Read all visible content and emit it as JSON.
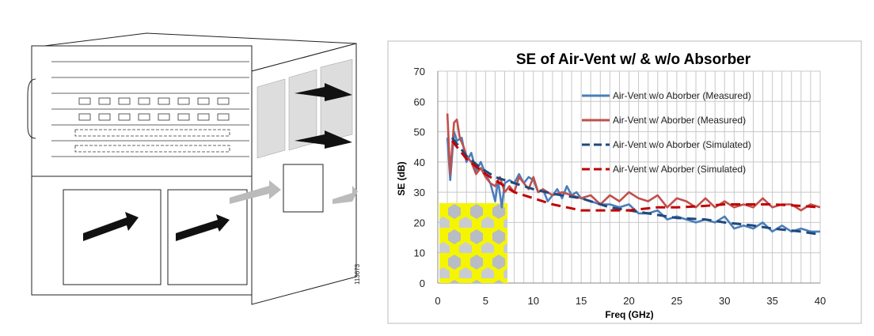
{
  "illustration": {
    "figure_number": "113673"
  },
  "chart_data": {
    "type": "line",
    "title": "SE of Air-Vent w/ & w/o Absorber",
    "xlabel": "Freq (GHz)",
    "ylabel": "SE (dB)",
    "xlim": [
      0,
      40
    ],
    "ylim": [
      0,
      70
    ],
    "xticks": [
      "0",
      "5",
      "10",
      "15",
      "20",
      "25",
      "30",
      "35",
      "40"
    ],
    "yticks": [
      "0",
      "10",
      "20",
      "30",
      "40",
      "50",
      "60",
      "70"
    ],
    "grid": true,
    "legend_position": "top-right",
    "series": [
      {
        "name": "Air-Vent w/o Aborber (Measured)",
        "color": "#4a7ebb",
        "dash": false,
        "points": [
          [
            1,
            48
          ],
          [
            1.3,
            34
          ],
          [
            1.7,
            50
          ],
          [
            2,
            47
          ],
          [
            2.5,
            48
          ],
          [
            3,
            40
          ],
          [
            3.5,
            43
          ],
          [
            4,
            37
          ],
          [
            4.5,
            40
          ],
          [
            5,
            36
          ],
          [
            5.5,
            33
          ],
          [
            6,
            27
          ],
          [
            6.3,
            34
          ],
          [
            6.7,
            25
          ],
          [
            7,
            33
          ],
          [
            7.5,
            34
          ],
          [
            8,
            33
          ],
          [
            8.5,
            36
          ],
          [
            9,
            33
          ],
          [
            9.5,
            35
          ],
          [
            10,
            34
          ],
          [
            10.5,
            30
          ],
          [
            11,
            31
          ],
          [
            11.5,
            27
          ],
          [
            12,
            29
          ],
          [
            12.5,
            31
          ],
          [
            13,
            28
          ],
          [
            13.5,
            32
          ],
          [
            14,
            29
          ],
          [
            14.5,
            30
          ],
          [
            15,
            28
          ],
          [
            16,
            27
          ],
          [
            17,
            26
          ],
          [
            18,
            26
          ],
          [
            19,
            25
          ],
          [
            20,
            26
          ],
          [
            21,
            23
          ],
          [
            22,
            23
          ],
          [
            23,
            24
          ],
          [
            24,
            21
          ],
          [
            25,
            22
          ],
          [
            26,
            21
          ],
          [
            27,
            20
          ],
          [
            28,
            21
          ],
          [
            29,
            20
          ],
          [
            30,
            22
          ],
          [
            31,
            18
          ],
          [
            32,
            19
          ],
          [
            33,
            18
          ],
          [
            34,
            20
          ],
          [
            35,
            17
          ],
          [
            36,
            19
          ],
          [
            37,
            17
          ],
          [
            38,
            18
          ],
          [
            39,
            17
          ],
          [
            40,
            17
          ]
        ]
      },
      {
        "name": "Air-Vent w/ Aborber (Measured)",
        "color": "#c0504d",
        "dash": false,
        "points": [
          [
            1,
            56
          ],
          [
            1.3,
            36
          ],
          [
            1.7,
            53
          ],
          [
            2,
            54
          ],
          [
            2.3,
            48
          ],
          [
            2.7,
            45
          ],
          [
            3,
            42
          ],
          [
            3.5,
            40
          ],
          [
            4,
            36
          ],
          [
            4.5,
            38
          ],
          [
            5,
            35
          ],
          [
            5.5,
            33
          ],
          [
            6,
            32
          ],
          [
            6.5,
            35
          ],
          [
            7,
            30
          ],
          [
            7.5,
            32
          ],
          [
            8,
            30
          ],
          [
            8.5,
            35
          ],
          [
            9,
            33
          ],
          [
            9.5,
            31
          ],
          [
            10,
            35
          ],
          [
            10.5,
            30
          ],
          [
            11,
            31
          ],
          [
            12,
            29
          ],
          [
            13,
            30
          ],
          [
            14,
            29
          ],
          [
            15,
            28
          ],
          [
            16,
            29
          ],
          [
            17,
            26
          ],
          [
            18,
            29
          ],
          [
            19,
            27
          ],
          [
            20,
            30
          ],
          [
            21,
            28
          ],
          [
            22,
            27
          ],
          [
            23,
            29
          ],
          [
            24,
            25
          ],
          [
            25,
            28
          ],
          [
            26,
            27
          ],
          [
            27,
            25
          ],
          [
            28,
            28
          ],
          [
            29,
            25
          ],
          [
            30,
            27
          ],
          [
            31,
            25
          ],
          [
            32,
            26
          ],
          [
            33,
            25
          ],
          [
            34,
            28
          ],
          [
            35,
            25
          ],
          [
            36,
            26
          ],
          [
            37,
            26
          ],
          [
            38,
            24
          ],
          [
            39,
            26
          ],
          [
            40,
            25
          ]
        ]
      },
      {
        "name": "Air-Vent w/o Aborber (Simulated)",
        "color": "#1f497d",
        "dash": true,
        "points": [
          [
            1.5,
            48
          ],
          [
            3,
            42
          ],
          [
            4.5,
            38
          ],
          [
            6,
            35
          ],
          [
            8,
            33
          ],
          [
            10,
            31
          ],
          [
            12,
            29.5
          ],
          [
            15,
            28
          ],
          [
            18,
            25
          ],
          [
            20,
            24
          ],
          [
            22,
            23
          ],
          [
            25,
            21.5
          ],
          [
            28,
            21
          ],
          [
            30,
            20
          ],
          [
            33,
            19
          ],
          [
            35,
            18
          ],
          [
            38,
            17
          ],
          [
            40,
            16
          ]
        ]
      },
      {
        "name": "Air-Vent w/ Aborber (Simulated)",
        "color": "#c00000",
        "dash": true,
        "points": [
          [
            1.5,
            47
          ],
          [
            3,
            41
          ],
          [
            5,
            36
          ],
          [
            6.5,
            33
          ],
          [
            8,
            30
          ],
          [
            10,
            28
          ],
          [
            12,
            26
          ],
          [
            15,
            24
          ],
          [
            18,
            24
          ],
          [
            20,
            24
          ],
          [
            23,
            25
          ],
          [
            25,
            25
          ],
          [
            28,
            25.5
          ],
          [
            30,
            26
          ],
          [
            33,
            26
          ],
          [
            35,
            26
          ],
          [
            38,
            25.5
          ],
          [
            40,
            25
          ]
        ]
      }
    ]
  }
}
